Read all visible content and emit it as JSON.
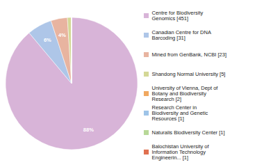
{
  "chart_data": {
    "type": "pie",
    "categories": [
      "Centre for Biodiversity\nGenomics [451]",
      "Canadian Centre for DNA\nBarcoding [31]",
      "Mined from GenBank, NCBI [23]",
      "Shandong Normal University [5]",
      "University of Vienna, Dept of\nBotany and Biodiversity\nResearch [2]",
      "Research Center in\nBiodiversity and Genetic\nResources [1]",
      "Naturalis Biodiversity Center [1]",
      "Balochistan University of\nInformation Technology\nEngineerin... [1]"
    ],
    "values": [
      88,
      6,
      4,
      1,
      0,
      0,
      0,
      0
    ],
    "value_labels": [
      "88%",
      "6%",
      "4%",
      null,
      null,
      null,
      null,
      null
    ],
    "colors": [
      "#d8b4d8",
      "#aec6e8",
      "#e8b4a0",
      "#d4d896",
      "#f0a860",
      "#9ec4e8",
      "#b8d898",
      "#e07050"
    ],
    "data_labels": true,
    "legend": "right"
  }
}
